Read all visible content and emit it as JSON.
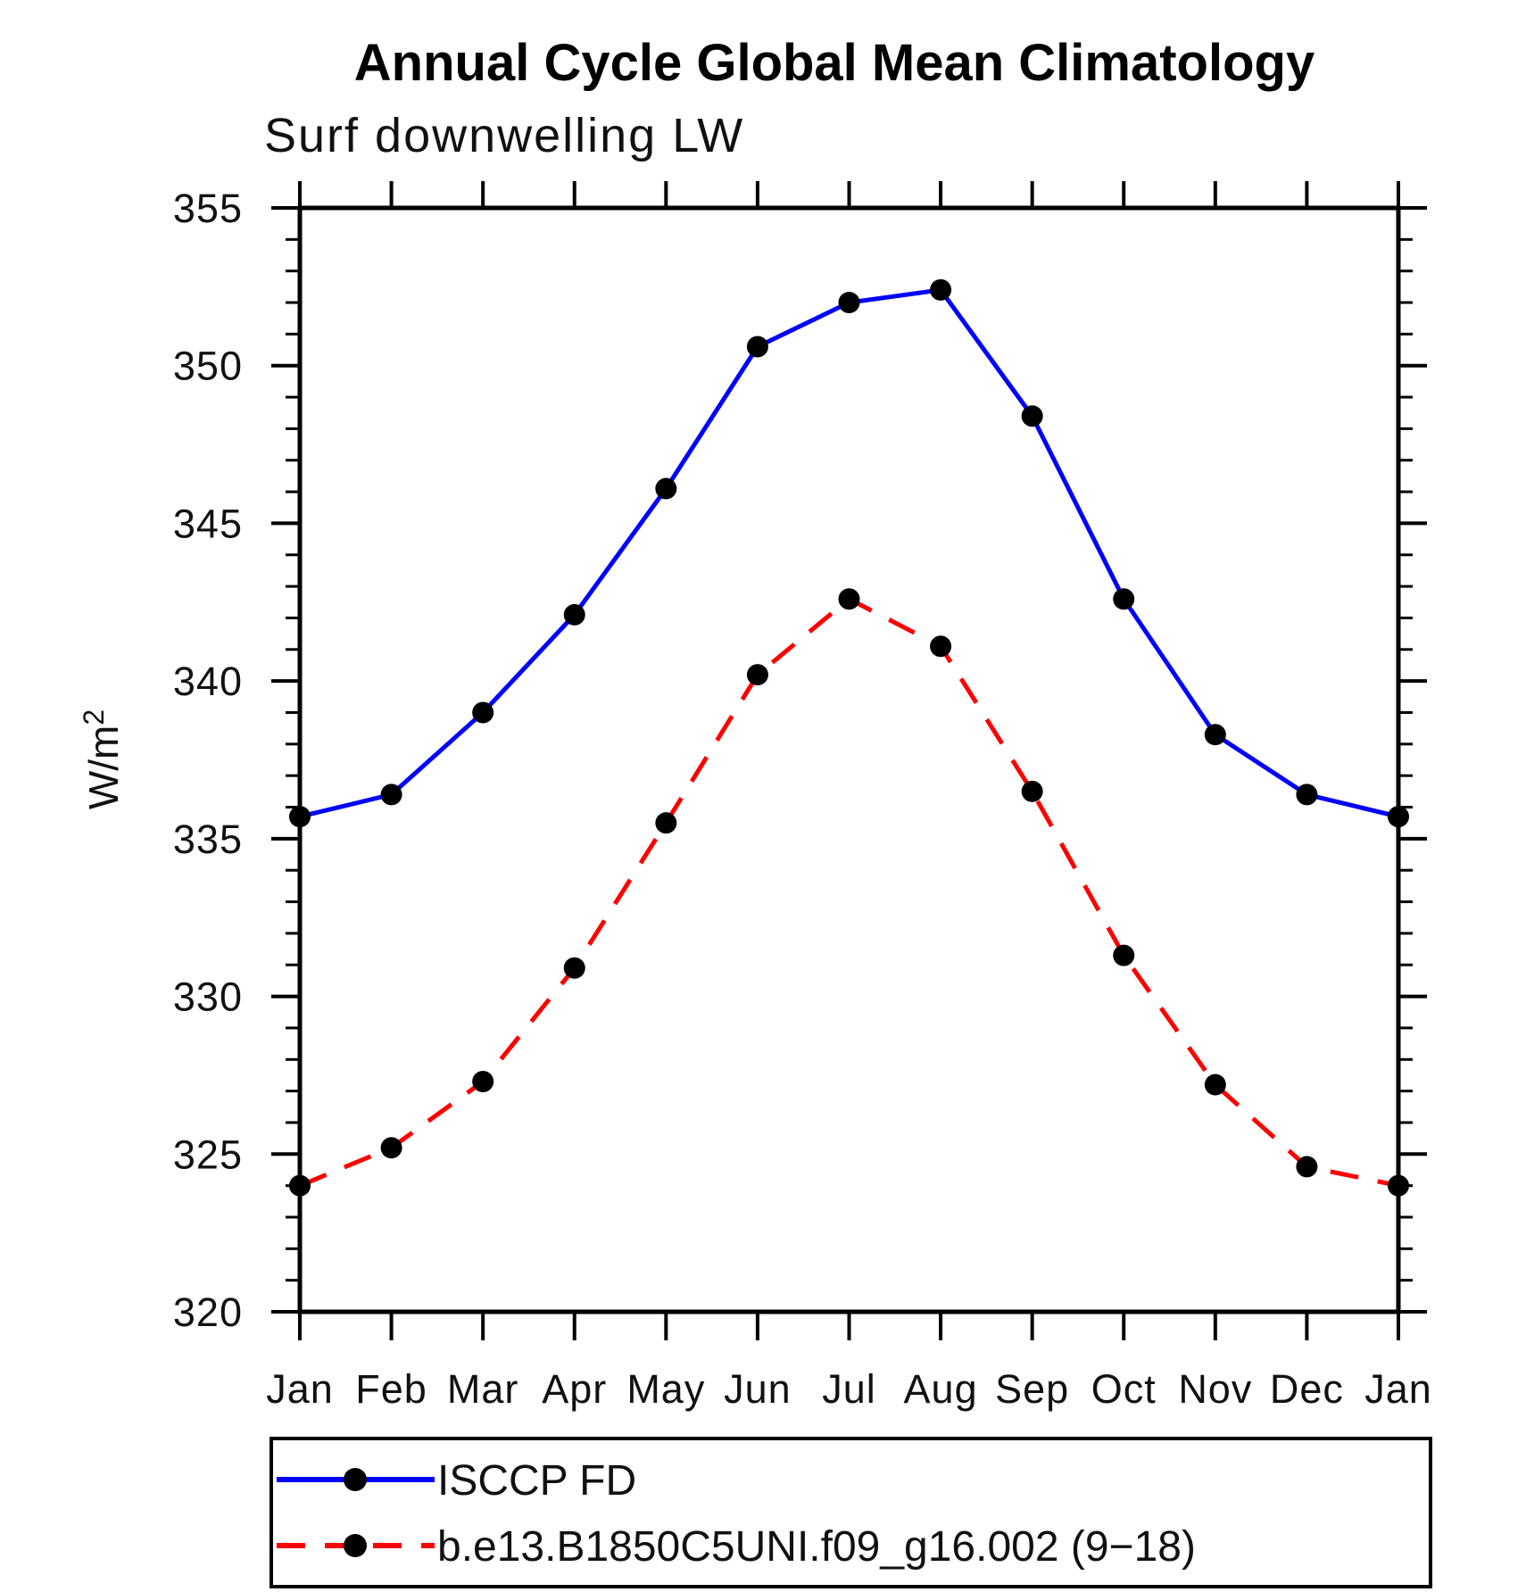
{
  "page": {
    "background": "#ffffff"
  },
  "chart_data": {
    "type": "line",
    "title": "Annual Cycle Global Mean Climatology",
    "subtitle": "Surf downwelling LW",
    "ylabel_base": "W/m",
    "ylabel_exponent": "2",
    "xlabel": "",
    "categories": [
      "Jan",
      "Feb",
      "Mar",
      "Apr",
      "May",
      "Jun",
      "Jul",
      "Aug",
      "Sep",
      "Oct",
      "Nov",
      "Dec",
      "Jan"
    ],
    "ylim": [
      320,
      355
    ],
    "ytick_major_step": 5,
    "ytick_minor_step": 1,
    "ytick_labels": [
      "320",
      "325",
      "330",
      "335",
      "340",
      "345",
      "350",
      "355"
    ],
    "grid": false,
    "legend_position": "bottom",
    "axis_color": "#000000",
    "marker_color": "#000000",
    "series": [
      {
        "name": "ISCCP FD",
        "line_color": "#0000ff",
        "line_style": "solid",
        "marker": "filled-circle",
        "values": [
          335.7,
          336.4,
          339.0,
          342.1,
          346.1,
          350.6,
          352.0,
          352.4,
          348.4,
          342.6,
          338.3,
          336.4,
          335.7
        ]
      },
      {
        "name": "b.e13.B1850C5UNI.f09_g16.002 (9−18)",
        "line_color": "#ff0000",
        "line_style": "dashed",
        "marker": "filled-circle",
        "values": [
          324.0,
          325.2,
          327.3,
          330.9,
          335.5,
          340.2,
          342.6,
          341.1,
          336.5,
          331.3,
          327.2,
          324.6,
          324.0
        ]
      }
    ]
  }
}
